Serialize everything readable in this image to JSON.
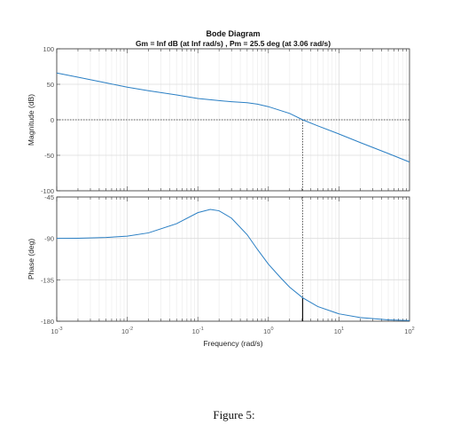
{
  "figure": {
    "caption": "Figure 5:"
  },
  "chart_data": {
    "type": "line",
    "title": "Bode Diagram",
    "subtitle": "Gm = Inf dB (at Inf rad/s) ,  Pm = 25.5 deg (at 3.06 rad/s)",
    "xlabel": "Frequency  (rad/s)",
    "x_scale": "log",
    "xlim": [
      0.001,
      100
    ],
    "x_ticks": [
      0.001,
      0.01,
      0.1,
      1,
      10,
      100
    ],
    "x_tick_labels": [
      {
        "base": "10",
        "exp": "-3"
      },
      {
        "base": "10",
        "exp": "-2"
      },
      {
        "base": "10",
        "exp": "-1"
      },
      {
        "base": "10",
        "exp": "0"
      },
      {
        "base": "10",
        "exp": "1"
      },
      {
        "base": "10",
        "exp": "2"
      }
    ],
    "grid": true,
    "line_color": "#2a7fc4",
    "phase_margin": {
      "frequency": 3.06,
      "phase": -154.5
    },
    "panels": [
      {
        "ylabel": "Magnitude (dB)",
        "ylim": [
          -100,
          100
        ],
        "y_ticks": [
          100,
          50,
          0,
          -50,
          -100
        ],
        "y_tick_labels": [
          "100",
          "50",
          "0",
          "-50",
          "-100"
        ],
        "reference_line": 0,
        "series": [
          {
            "x": [
              0.001,
              0.002,
              0.005,
              0.01,
              0.02,
              0.05,
              0.1,
              0.2,
              0.3,
              0.5,
              0.7,
              1,
              2,
              3.06,
              5,
              10,
              20,
              50,
              100
            ],
            "y": [
              66,
              60,
              52,
              46,
              41,
              35,
              30,
              27,
              25.5,
              24,
              22,
              18.5,
              9,
              0,
              -8.5,
              -20,
              -32,
              -47.5,
              -59.5
            ]
          }
        ]
      },
      {
        "ylabel": "Phase (deg)",
        "ylim": [
          -180,
          -45
        ],
        "y_ticks": [
          -45,
          -90,
          -135,
          -180
        ],
        "y_tick_labels": [
          "-45",
          "-90",
          "-135",
          "-180"
        ],
        "series": [
          {
            "x": [
              0.001,
              0.002,
              0.005,
              0.01,
              0.02,
              0.05,
              0.1,
              0.15,
              0.2,
              0.3,
              0.5,
              0.7,
              1,
              1.5,
              2,
              3.06,
              5,
              10,
              20,
              50,
              100
            ],
            "y": [
              -90,
              -89.8,
              -89,
              -87.5,
              -84,
              -74,
              -62,
              -58.5,
              -60,
              -68,
              -86,
              -102,
              -118,
              -133,
              -143,
              -154.5,
              -164,
              -172,
              -176,
              -178.5,
              -179.3
            ]
          }
        ]
      }
    ]
  }
}
